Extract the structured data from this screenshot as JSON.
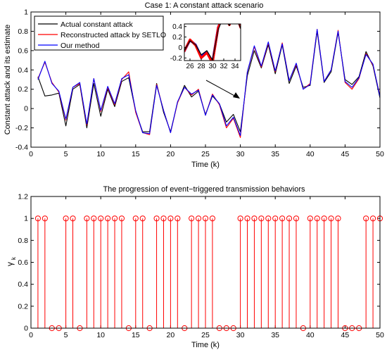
{
  "chart_data": [
    {
      "type": "line",
      "title": "Case 1: A constant attack scenario",
      "xlabel": "Time (k)",
      "ylabel": "Constant attack and its estimate",
      "xlim": [
        0,
        50
      ],
      "ylim": [
        -0.4,
        1.0
      ],
      "xticks": [
        0,
        5,
        10,
        15,
        20,
        25,
        30,
        35,
        40,
        45,
        50
      ],
      "yticks": [
        -0.4,
        -0.2,
        0,
        0.2,
        0.4,
        0.6,
        0.8,
        1.0
      ],
      "grid": false,
      "legend_position": "top-left",
      "x": [
        1,
        2,
        3,
        4,
        5,
        6,
        7,
        8,
        9,
        10,
        11,
        12,
        13,
        14,
        15,
        16,
        17,
        18,
        19,
        20,
        21,
        22,
        23,
        24,
        25,
        26,
        27,
        28,
        29,
        30,
        31,
        32,
        33,
        34,
        35,
        36,
        37,
        38,
        39,
        40,
        41,
        42,
        43,
        44,
        45,
        46,
        47,
        48,
        49,
        50
      ],
      "series": [
        {
          "name": "Actual constant attack",
          "color": "#000000",
          "values": [
            0.33,
            0.13,
            0.14,
            0.16,
            -0.18,
            0.2,
            0.25,
            -0.2,
            0.26,
            -0.08,
            0.2,
            0.02,
            0.28,
            0.32,
            -0.03,
            -0.24,
            -0.24,
            0.26,
            -0.04,
            -0.24,
            0.06,
            0.24,
            0.12,
            0.18,
            -0.06,
            0.13,
            0.05,
            -0.14,
            -0.06,
            -0.24,
            0.34,
            0.6,
            0.42,
            0.66,
            0.36,
            0.66,
            0.26,
            0.44,
            0.22,
            0.24,
            0.8,
            0.27,
            0.38,
            0.79,
            0.3,
            0.25,
            0.33,
            0.59,
            0.44,
            0.11
          ]
        },
        {
          "name": "Reconstructed attack by SETLO",
          "color": "#ff0000",
          "values": [
            0.31,
            0.48,
            0.27,
            0.17,
            -0.12,
            0.22,
            0.26,
            -0.17,
            0.31,
            -0.03,
            0.22,
            0.04,
            0.3,
            0.38,
            -0.04,
            -0.25,
            -0.27,
            0.25,
            -0.02,
            -0.25,
            0.06,
            0.22,
            0.14,
            0.2,
            -0.07,
            0.15,
            0.04,
            -0.2,
            -0.1,
            -0.3,
            0.38,
            0.64,
            0.43,
            0.68,
            0.38,
            0.68,
            0.29,
            0.46,
            0.2,
            0.26,
            0.82,
            0.28,
            0.4,
            0.81,
            0.27,
            0.2,
            0.31,
            0.57,
            0.45,
            0.13
          ]
        },
        {
          "name": "Our method",
          "color": "#0000ff",
          "values": [
            0.3,
            0.49,
            0.26,
            0.18,
            -0.11,
            0.22,
            0.27,
            -0.16,
            0.31,
            -0.02,
            0.23,
            0.05,
            0.31,
            0.35,
            -0.02,
            -0.25,
            -0.26,
            0.24,
            -0.02,
            -0.25,
            0.07,
            0.22,
            0.15,
            0.19,
            -0.07,
            0.14,
            0.05,
            -0.18,
            -0.09,
            -0.28,
            0.38,
            0.65,
            0.44,
            0.69,
            0.39,
            0.67,
            0.29,
            0.47,
            0.2,
            0.25,
            0.82,
            0.28,
            0.4,
            0.8,
            0.28,
            0.22,
            0.32,
            0.56,
            0.46,
            0.12
          ]
        }
      ],
      "inset": {
        "xlim": [
          25,
          35
        ],
        "ylim": [
          -0.25,
          0.45
        ],
        "xticks": [
          26,
          28,
          30,
          32,
          34
        ],
        "yticks": [
          -0.2,
          0,
          0.2,
          0.4
        ]
      }
    },
    {
      "type": "stem",
      "title": "The progression of event−triggered transmission behaviors",
      "xlabel": "Time (k)",
      "ylabel_main": "γ",
      "ylabel_sub": "k",
      "xlim": [
        0,
        50
      ],
      "ylim": [
        0,
        1.2
      ],
      "xticks": [
        0,
        5,
        10,
        15,
        20,
        25,
        30,
        35,
        40,
        45,
        50
      ],
      "yticks": [
        0,
        0.2,
        0.4,
        0.6,
        0.8,
        1.0,
        1.2
      ],
      "color": "#ff0000",
      "x": [
        1,
        2,
        3,
        4,
        5,
        6,
        7,
        8,
        9,
        10,
        11,
        12,
        13,
        14,
        15,
        16,
        17,
        18,
        19,
        20,
        21,
        22,
        23,
        24,
        25,
        26,
        27,
        28,
        29,
        30,
        31,
        32,
        33,
        34,
        35,
        36,
        37,
        38,
        39,
        40,
        41,
        42,
        43,
        44,
        45,
        46,
        47,
        48,
        49,
        50
      ],
      "values": [
        1,
        1,
        0,
        0,
        1,
        1,
        0,
        1,
        1,
        1,
        1,
        1,
        1,
        0,
        1,
        1,
        0,
        1,
        1,
        1,
        1,
        0,
        1,
        1,
        1,
        1,
        0,
        0,
        0,
        1,
        1,
        1,
        1,
        1,
        1,
        1,
        1,
        1,
        0,
        1,
        1,
        1,
        1,
        1,
        0,
        0,
        0,
        1,
        1,
        1
      ]
    }
  ]
}
